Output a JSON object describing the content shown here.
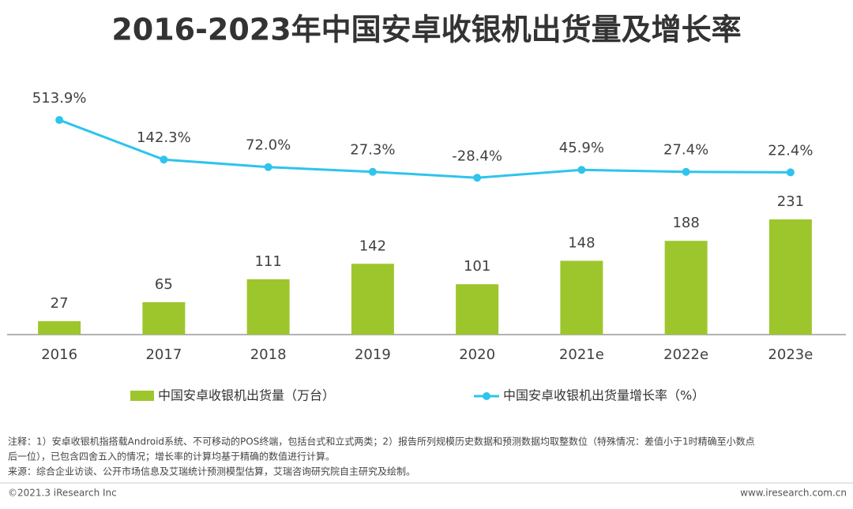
{
  "chart_data": {
    "type": "bar_line",
    "title": "2016-2023年中国安卓收银机出货量及增长率",
    "categories": [
      "2016",
      "2017",
      "2018",
      "2019",
      "2020",
      "2021e",
      "2022e",
      "2023e"
    ],
    "series": [
      {
        "name": "中国安卓收银机出货量（万台）",
        "type": "bar",
        "color": "#9dc62d",
        "values": [
          27,
          65,
          111,
          142,
          101,
          148,
          188,
          231
        ]
      },
      {
        "name": "中国安卓收银机出货量增长率（%）",
        "type": "line",
        "axis": "y2",
        "color": "#2ec4ec",
        "values": [
          513.9,
          142.3,
          72.0,
          27.3,
          -28.4,
          45.9,
          27.4,
          22.4
        ],
        "value_labels": [
          "513.9%",
          "142.3%",
          "72.0%",
          "27.3%",
          "-28.4%",
          "45.9%",
          "27.4%",
          "22.4%"
        ]
      }
    ],
    "ylim": [
      0,
      500
    ],
    "y2lim": [
      -1500,
      840
    ],
    "notes": [
      "注释：1）安卓收银机指搭载Android系统、不可移动的POS终端，包括台式和立式两类；2）报告所列规模历史数据和预测数据均取整数位（特殊情况：差值小于1时精确至小数点",
      "后一位），已包含四舍五入的情况；增长率的计算均基于精确的数值进行计算。",
      "来源：综合企业访谈、公开市场信息及艾瑞统计预测模型估算，艾瑞咨询研究院自主研究及绘制。"
    ],
    "footer_left": "©2021.3 iResearch Inc",
    "footer_right": "www.iresearch.com.cn"
  }
}
